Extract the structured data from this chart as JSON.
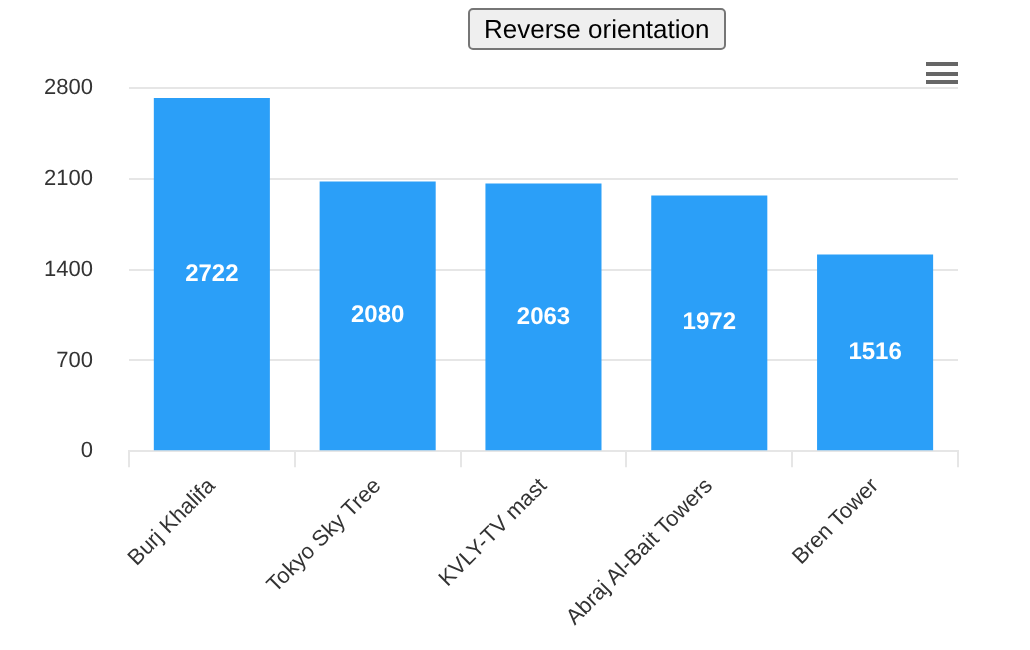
{
  "chart_data": {
    "type": "bar",
    "categories": [
      "Burj Khalifa",
      "Tokyo Sky Tree",
      "KVLY-TV mast",
      "Abraj Al-Bait Towers",
      "Bren Tower"
    ],
    "values": [
      2722,
      2080,
      2063,
      1972,
      1516
    ],
    "color": "#2b9ff8",
    "ylim": [
      0,
      2800
    ],
    "yticks": [
      0,
      700,
      1400,
      2100,
      2800
    ],
    "grid": "y",
    "data_labels": true,
    "annotations": [
      "Reverse orientation"
    ]
  }
}
